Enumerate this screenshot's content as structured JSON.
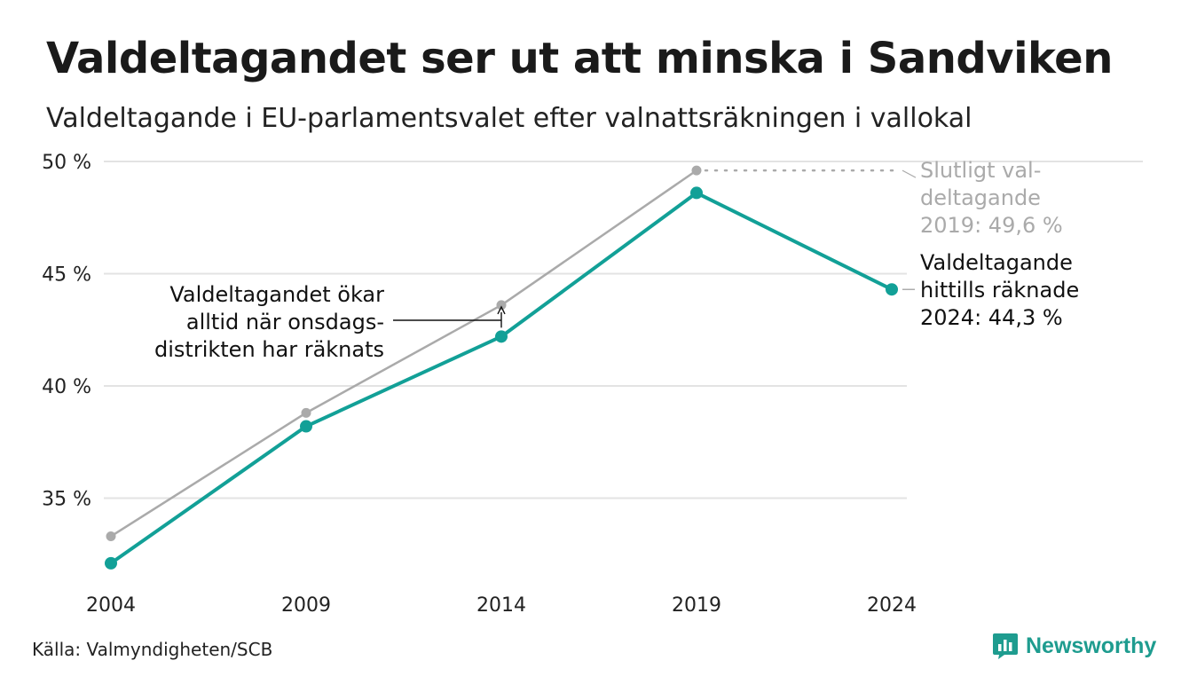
{
  "title": "Valdeltagandet ser ut att minska i Sandviken",
  "subtitle": "Valdeltagande i EU-parlamentsvalet efter valnattsräkningen i vallokal",
  "source": "Källa: Valmyndigheten/SCB",
  "brand": "Newsworthy",
  "colors": {
    "accent": "#12a097",
    "final": "#aaaaaa",
    "grid": "#e3e3e3",
    "text": "#222222"
  },
  "chart_data": {
    "type": "line",
    "x": [
      "2004",
      "2009",
      "2014",
      "2019",
      "2024"
    ],
    "ylim": [
      31,
      50
    ],
    "yticks": [
      {
        "value": 35,
        "label": "35 %"
      },
      {
        "value": 40,
        "label": "40 %"
      },
      {
        "value": 45,
        "label": "45 %"
      },
      {
        "value": 50,
        "label": "50 %"
      }
    ],
    "grid": true,
    "series": [
      {
        "key": "final",
        "color": "#aaaaaa",
        "values": [
          33.3,
          38.8,
          43.6,
          49.6,
          null
        ]
      },
      {
        "key": "election_night",
        "color": "#12a097",
        "values": [
          32.1,
          38.2,
          42.2,
          48.6,
          44.3
        ]
      }
    ],
    "annotations": [
      {
        "key": "final",
        "lines": [
          "Slutligt val-",
          "deltagande",
          "2019: 49,6 %"
        ]
      },
      {
        "key": "current",
        "lines": [
          "Valdeltagande",
          "hittills räknade",
          "2024: 44,3 %"
        ]
      },
      {
        "key": "wednesday",
        "lines": [
          "Valdeltagandet ökar",
          "alltid när onsdags-",
          "distrikten har räknats"
        ]
      }
    ]
  }
}
